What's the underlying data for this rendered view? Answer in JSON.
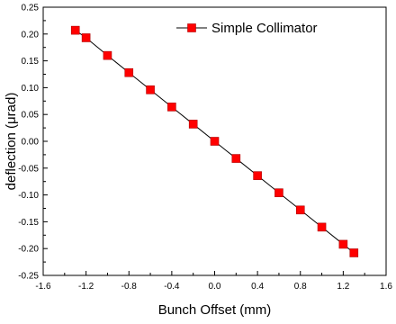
{
  "chart_data": {
    "type": "line",
    "xlabel": "Bunch Offset (mm)",
    "ylabel": "deflection (μrad)",
    "xlim": [
      -1.6,
      1.6
    ],
    "ylim": [
      -0.25,
      0.25
    ],
    "x_ticks": [
      "-1.6",
      "-1.2",
      "-0.8",
      "-0.4",
      "0.0",
      "0.4",
      "0.8",
      "1.2",
      "1.6"
    ],
    "y_ticks": [
      "-0.25",
      "-0.20",
      "-0.15",
      "-0.10",
      "-0.05",
      "0.00",
      "0.05",
      "0.10",
      "0.15",
      "0.20",
      "0.25"
    ],
    "grid": false,
    "legend_position": "top-right",
    "series": [
      {
        "name": "Simple Collimator",
        "color": "#ff0000",
        "line_color": "#000000",
        "marker": "square",
        "x": [
          -1.3,
          -1.2,
          -1.0,
          -0.8,
          -0.6,
          -0.4,
          -0.2,
          0.0,
          0.2,
          0.4,
          0.6,
          0.8,
          1.0,
          1.2,
          1.3
        ],
        "y": [
          0.207,
          0.193,
          0.16,
          0.128,
          0.096,
          0.064,
          0.032,
          0.0,
          -0.032,
          -0.064,
          -0.096,
          -0.128,
          -0.16,
          -0.192,
          -0.208
        ]
      }
    ]
  }
}
